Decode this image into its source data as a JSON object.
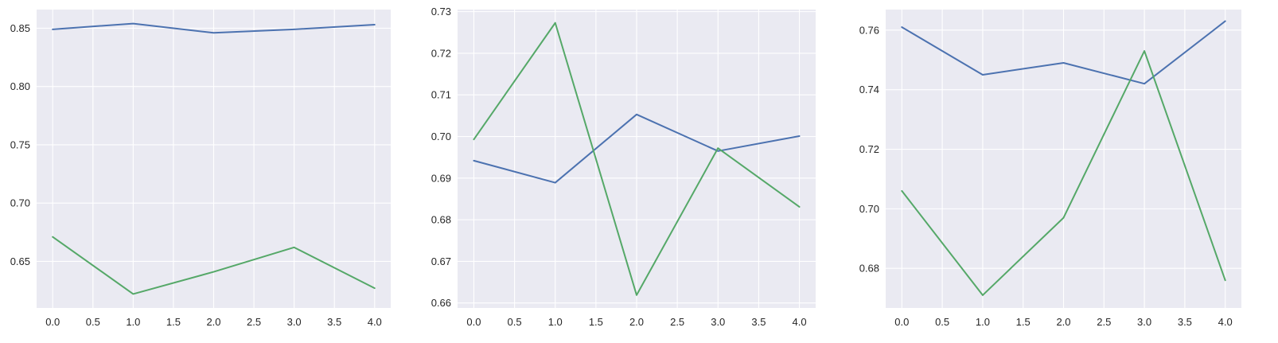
{
  "figure": {
    "background": "#ffffff",
    "plot_background": "#EAEAF2",
    "grid_color": "#ffffff",
    "tick_label_color": "#262626"
  },
  "chart_data": [
    {
      "type": "line",
      "title": "",
      "xlabel": "",
      "ylabel": "",
      "grid": true,
      "legend": null,
      "xlim": [
        -0.2,
        4.2
      ],
      "ylim": [
        0.61,
        0.866
      ],
      "xticks": [
        "0.0",
        "0.5",
        "1.0",
        "1.5",
        "2.0",
        "2.5",
        "3.0",
        "3.5",
        "4.0"
      ],
      "yticks": [
        "0.65",
        "0.70",
        "0.75",
        "0.80",
        "0.85"
      ],
      "x": [
        0,
        1,
        2,
        3,
        4
      ],
      "series": [
        {
          "color": "#4C72B0",
          "values": [
            0.849,
            0.854,
            0.846,
            0.849,
            0.853
          ]
        },
        {
          "color": "#55A868",
          "values": [
            0.671,
            0.622,
            0.641,
            0.662,
            0.627
          ]
        }
      ]
    },
    {
      "type": "line",
      "title": "",
      "xlabel": "",
      "ylabel": "",
      "grid": true,
      "legend": null,
      "xlim": [
        -0.2,
        4.2
      ],
      "ylim": [
        0.6588,
        0.7305
      ],
      "xticks": [
        "0.0",
        "0.5",
        "1.0",
        "1.5",
        "2.0",
        "2.5",
        "3.0",
        "3.5",
        "4.0"
      ],
      "yticks": [
        "0.66",
        "0.67",
        "0.68",
        "0.69",
        "0.70",
        "0.71",
        "0.72",
        "0.73"
      ],
      "x": [
        0,
        1,
        2,
        3,
        4
      ],
      "series": [
        {
          "color": "#4C72B0",
          "values": [
            0.6942,
            0.6889,
            0.7053,
            0.6965,
            0.7001
          ]
        },
        {
          "color": "#55A868",
          "values": [
            0.6993,
            0.7273,
            0.6619,
            0.6972,
            0.6831
          ]
        }
      ]
    },
    {
      "type": "line",
      "title": "",
      "xlabel": "",
      "ylabel": "",
      "grid": true,
      "legend": null,
      "xlim": [
        -0.2,
        4.2
      ],
      "ylim": [
        0.6667,
        0.7669
      ],
      "xticks": [
        "0.0",
        "0.5",
        "1.0",
        "1.5",
        "2.0",
        "2.5",
        "3.0",
        "3.5",
        "4.0"
      ],
      "yticks": [
        "0.68",
        "0.70",
        "0.72",
        "0.74",
        "0.76"
      ],
      "x": [
        0,
        1,
        2,
        3,
        4
      ],
      "series": [
        {
          "color": "#4C72B0",
          "values": [
            0.761,
            0.745,
            0.749,
            0.742,
            0.763
          ]
        },
        {
          "color": "#55A868",
          "values": [
            0.706,
            0.671,
            0.697,
            0.753,
            0.676
          ]
        }
      ]
    }
  ]
}
